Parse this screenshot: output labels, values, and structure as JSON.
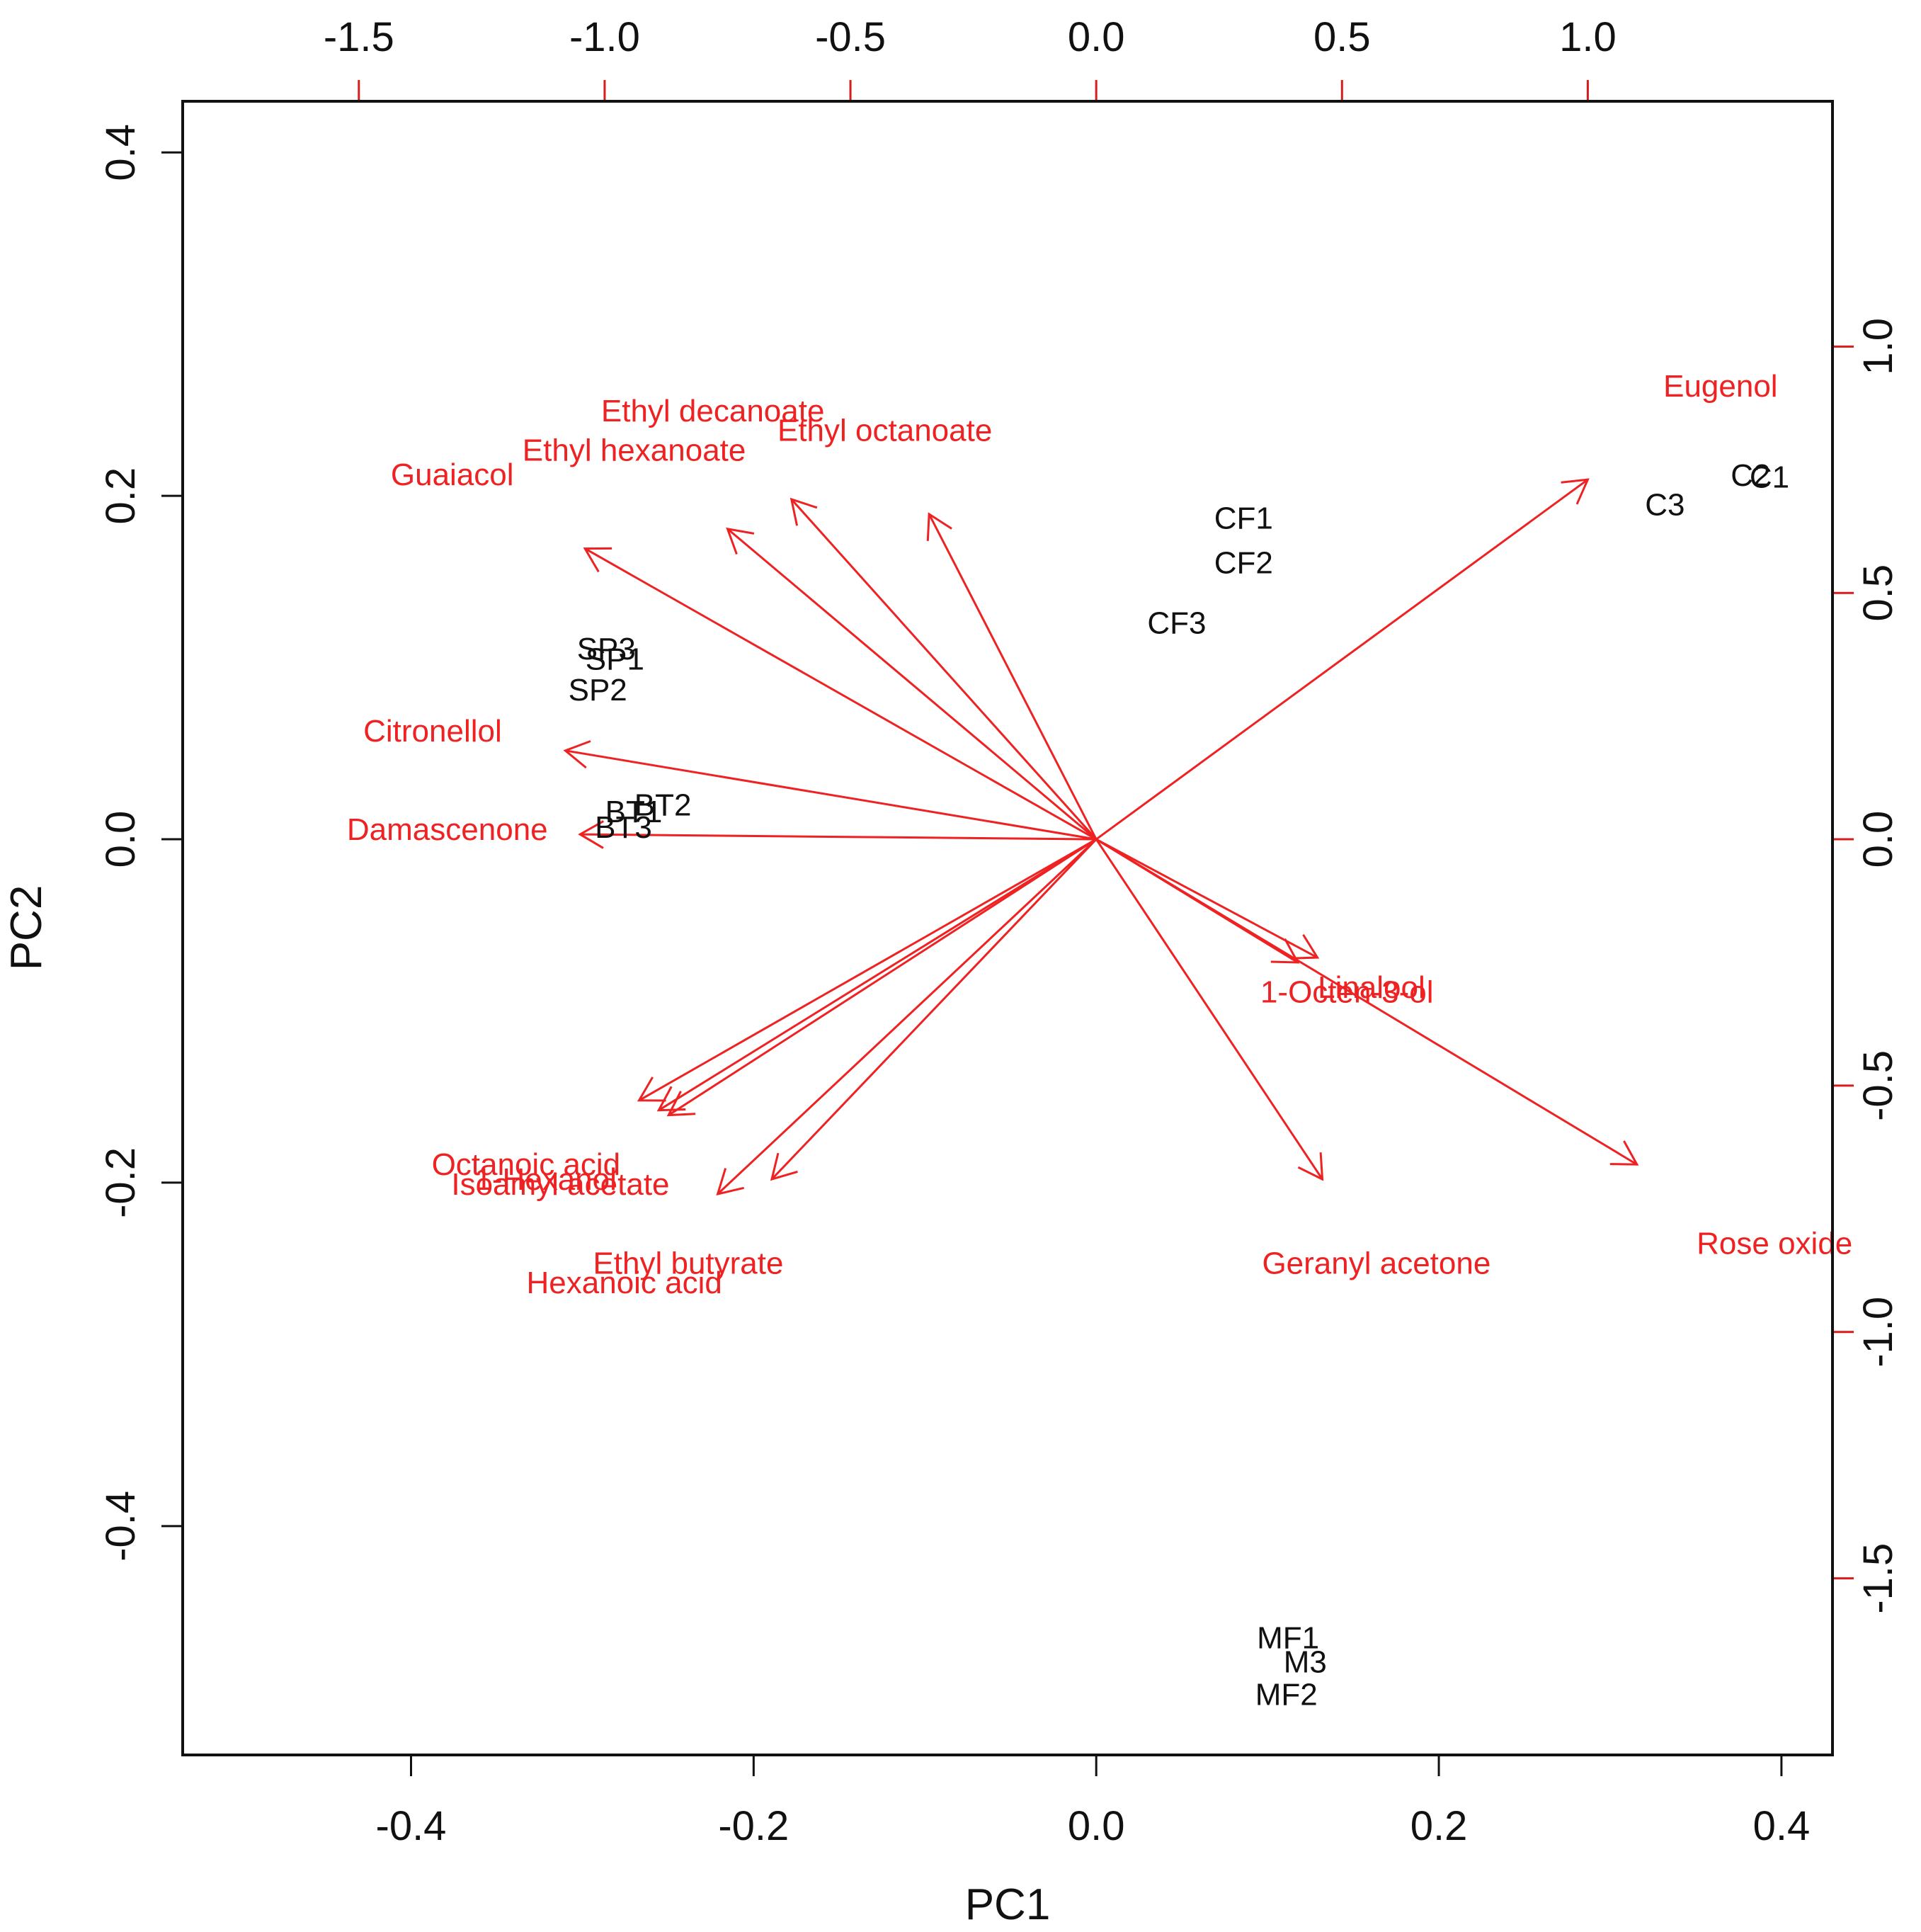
{
  "chart_data": {
    "type": "scatter",
    "subtype": "biplot",
    "title": "",
    "xlabel": "PC1",
    "ylabel": "PC2",
    "xlim": [
      -0.5333,
      0.4298
    ],
    "ylim": [
      -0.5333,
      0.4298
    ],
    "xticks": [
      -0.4,
      -0.2,
      0.0,
      0.2,
      0.4
    ],
    "yticks": [
      -0.4,
      -0.2,
      0.0,
      0.2,
      0.4
    ],
    "xtick_labels": [
      "-0.4",
      "-0.2",
      "0.0",
      "0.2",
      "0.4"
    ],
    "ytick_labels": [
      "-0.4",
      "-0.2",
      "0.0",
      "0.2",
      "0.4"
    ],
    "loading_xlim": [
      -1.8584,
      1.4978
    ],
    "loading_ylim": [
      -1.8584,
      1.4978
    ],
    "top_ticks": [
      -1.5,
      -1.0,
      -0.5,
      0.0,
      0.5,
      1.0
    ],
    "top_tick_labels": [
      "-1.5",
      "-1.0",
      "-0.5",
      "0.0",
      "0.5",
      "1.0"
    ],
    "right_ticks": [
      -1.5,
      -1.0,
      -0.5,
      0.0,
      0.5,
      1.0
    ],
    "right_tick_labels": [
      "-1.5",
      "-1.0",
      "-0.5",
      "0.0",
      "0.5",
      "1.0"
    ],
    "observation_color": "#111111",
    "variable_color": "#ee2222",
    "observations": [
      {
        "label": "C1",
        "x": 0.393,
        "y": 0.211
      },
      {
        "label": "C2",
        "x": 0.382,
        "y": 0.212
      },
      {
        "label": "C3",
        "x": 0.332,
        "y": 0.195
      },
      {
        "label": "CF1",
        "x": 0.086,
        "y": 0.187
      },
      {
        "label": "CF2",
        "x": 0.086,
        "y": 0.161
      },
      {
        "label": "CF3",
        "x": 0.047,
        "y": 0.126
      },
      {
        "label": "SP3",
        "x": -0.286,
        "y": 0.111
      },
      {
        "label": "SP1",
        "x": -0.281,
        "y": 0.105
      },
      {
        "label": "SP2",
        "x": -0.291,
        "y": 0.087
      },
      {
        "label": "BT2",
        "x": -0.253,
        "y": 0.02
      },
      {
        "label": "BT1",
        "x": -0.27,
        "y": 0.016
      },
      {
        "label": "BT3",
        "x": -0.276,
        "y": 0.007
      },
      {
        "label": "MF1",
        "x": 0.112,
        "y": -0.465
      },
      {
        "label": "M3",
        "x": 0.122,
        "y": -0.479
      },
      {
        "label": "MF2",
        "x": 0.111,
        "y": -0.498
      }
    ],
    "variables": [
      {
        "label": "Eugenol",
        "x": 1.0,
        "y": 0.73,
        "label_x": 1.27,
        "label_y": 0.92
      },
      {
        "label": "Ethyl decanoate",
        "x": -0.62,
        "y": 0.69,
        "label_x": -0.78,
        "label_y": 0.87
      },
      {
        "label": "Ethyl octanoate",
        "x": -0.34,
        "y": 0.66,
        "label_x": -0.43,
        "label_y": 0.83
      },
      {
        "label": "Ethyl hexanoate",
        "x": -0.75,
        "y": 0.63,
        "label_x": -0.94,
        "label_y": 0.79
      },
      {
        "label": "Guaiacol",
        "x": -1.04,
        "y": 0.59,
        "label_x": -1.31,
        "label_y": 0.74
      },
      {
        "label": "Citronellol",
        "x": -1.08,
        "y": 0.18,
        "label_x": -1.35,
        "label_y": 0.22
      },
      {
        "label": "Damascenone",
        "x": -1.05,
        "y": 0.01,
        "label_x": -1.32,
        "label_y": 0.02
      },
      {
        "label": "Linalool",
        "x": 0.45,
        "y": -0.24,
        "label_x": 0.56,
        "label_y": -0.3
      },
      {
        "label": "1-Octen-3-ol",
        "x": 0.41,
        "y": -0.25,
        "label_x": 0.51,
        "label_y": -0.31
      },
      {
        "label": "Rose oxide",
        "x": 1.1,
        "y": -0.66,
        "label_x": 1.38,
        "label_y": -0.82
      },
      {
        "label": "Geranyl acetone",
        "x": 0.46,
        "y": -0.69,
        "label_x": 0.57,
        "label_y": -0.86
      },
      {
        "label": "Octanoic acid",
        "x": -0.93,
        "y": -0.53,
        "label_x": -1.16,
        "label_y": -0.66
      },
      {
        "label": "1-Hexanol",
        "x": -0.89,
        "y": -0.55,
        "label_x": -1.12,
        "label_y": -0.69
      },
      {
        "label": "Isoamyl acetate",
        "x": -0.87,
        "y": -0.56,
        "label_x": -1.09,
        "label_y": -0.7
      },
      {
        "label": "Ethyl butyrate",
        "x": -0.66,
        "y": -0.69,
        "label_x": -0.83,
        "label_y": -0.86
      },
      {
        "label": "Hexanoic acid",
        "x": -0.77,
        "y": -0.72,
        "label_x": -0.96,
        "label_y": -0.9
      }
    ]
  }
}
